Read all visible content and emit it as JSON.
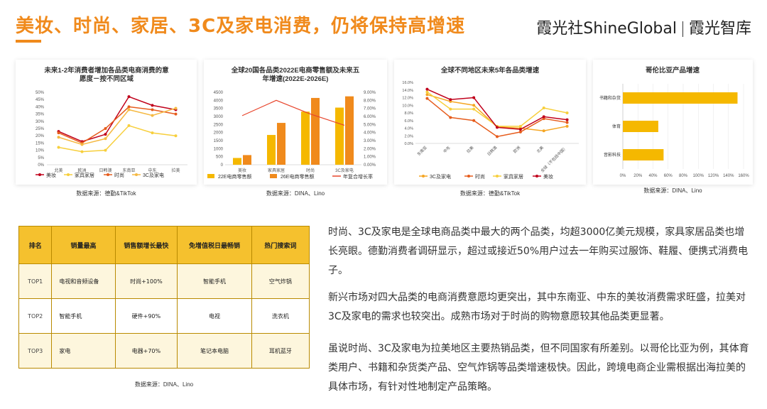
{
  "header": {
    "title": "美妆、时尚、家居、3C及家电消费，仍将保持高增速",
    "logo_left": "霞光社ShineGlobal",
    "logo_right": "霞光智库"
  },
  "chart_data": [
    {
      "type": "line",
      "title": "未来1-2年消费者增加各品类电商消费的意愿度－按不同区域",
      "categories": [
        "北美",
        "欧洲",
        "日韩澳",
        "东南亚",
        "中东",
        "拉美"
      ],
      "ylim": [
        0,
        50
      ],
      "yticks": [
        "0%",
        "5%",
        "10%",
        "15%",
        "20%",
        "25%",
        "30%",
        "35%",
        "40%",
        "45%",
        "50%"
      ],
      "series": [
        {
          "name": "美妆",
          "color": "#c0001b",
          "values": [
            23,
            16,
            21,
            47,
            41,
            38
          ]
        },
        {
          "name": "家具家居",
          "color": "#f7cf3c",
          "values": [
            12,
            9,
            10,
            27,
            22,
            20
          ]
        },
        {
          "name": "时尚",
          "color": "#e65c1c",
          "values": [
            22,
            15,
            25,
            40,
            38,
            35
          ]
        },
        {
          "name": "3C及家电",
          "color": "#f5b942",
          "values": [
            19,
            14,
            18,
            38,
            34,
            39
          ]
        }
      ],
      "source": "数据来源：德勤&TikTok"
    },
    {
      "type": "bar",
      "title": "全球20国各品类2022E电商零售额及未来五年增速(2022E-2026E)",
      "categories": [
        "美妆",
        "家具家居",
        "时尚",
        "3C及家电"
      ],
      "ylim": [
        0,
        4500
      ],
      "yticks": [
        "0",
        "500",
        "1000",
        "1500",
        "2000",
        "2500",
        "3000",
        "3500",
        "4000",
        "4500"
      ],
      "y2lim": [
        0,
        9
      ],
      "y2ticks": [
        "0.00%",
        "1.00%",
        "2.00%",
        "3.00%",
        "4.00%",
        "5.00%",
        "6.00%",
        "7.00%",
        "8.00%",
        "9.00%"
      ],
      "series": [
        {
          "name": "22E电商零售额",
          "color": "#f5b800",
          "values": [
            420,
            1850,
            3300,
            3550
          ]
        },
        {
          "name": "26E电商零售额",
          "color": "#f08a1c",
          "values": [
            600,
            2600,
            4150,
            4250
          ]
        },
        {
          "name": "年复合增长率",
          "color": "#e8452c",
          "values": [
            6.1,
            8.0,
            6.3,
            4.9
          ]
        }
      ],
      "source": "数据来源：DINA、Lino"
    },
    {
      "type": "line",
      "title": "全球不同地区未来5年各品类增速",
      "categories": [
        "东南亚",
        "中东",
        "拉美",
        "日韩澳",
        "欧洲",
        "北美",
        "全球（不包括中国）"
      ],
      "ylim": [
        0,
        16
      ],
      "yticks": [
        "0.0%",
        "2.0%",
        "4.0%",
        "6.0%",
        "8.0%",
        "10.0%",
        "12.0%",
        "14.0%",
        "16.0%"
      ],
      "series": [
        {
          "name": "3C及家电",
          "color": "#f5a623",
          "values": [
            12.8,
            11.0,
            10.0,
            4.3,
            4.0,
            3.3,
            4.5
          ]
        },
        {
          "name": "时尚",
          "color": "#e65c1c",
          "values": [
            11.8,
            6.8,
            6.0,
            1.8,
            3.0,
            6.5,
            5.5
          ]
        },
        {
          "name": "家具家居",
          "color": "#f7cf3c",
          "values": [
            13.5,
            9.0,
            9.0,
            4.5,
            4.5,
            9.3,
            8.0
          ]
        },
        {
          "name": "美妆",
          "color": "#c0001b",
          "values": [
            14.2,
            11.5,
            12.0,
            4.2,
            3.7,
            7.0,
            6.2
          ]
        }
      ],
      "source": "数据来源：德勤&TikTok"
    },
    {
      "type": "bar",
      "orientation": "horizontal",
      "title": "哥伦比亚产品增速",
      "categories": [
        "书籍和杂货",
        "体育",
        "音影科技"
      ],
      "xlim": [
        0,
        160
      ],
      "xticks": [
        "0%",
        "20%",
        "40%",
        "60%",
        "80%",
        "100%",
        "120%",
        "140%",
        "160%"
      ],
      "values": [
        152,
        47,
        54
      ],
      "color": "#f5b800",
      "source": "数据来源：DINA、Lino"
    }
  ],
  "table": {
    "headers": [
      "排名",
      "销量最高",
      "销售额增长最快",
      "免增值税日最畅销",
      "热门搜索词"
    ],
    "rows": [
      [
        "TOP1",
        "电视和音频设备",
        "时尚+100%",
        "智能手机",
        "空气炸锅"
      ],
      [
        "TOP2",
        "智能手机",
        "硬件+90%",
        "电视",
        "洗衣机"
      ],
      [
        "TOP3",
        "家电",
        "电器+70%",
        "笔记本电脑",
        "耳机蓝牙"
      ]
    ],
    "source": "数据来源：DINA、Lino"
  },
  "paragraphs": [
    "时尚、3C及家电是全球电商品类中最大的两个品类，均超3000亿美元规模，家具家居品类也增长亮眼。德勤消费者调研显示，超过或接近50%用户过去一年购买过服饰、鞋履、便携式消费电子。",
    "新兴市场对四大品类的电商消费意愿均更突出，其中东南亚、中东的美妆消费需求旺盛，拉美对3C及家电的需求也较突出。成熟市场对于时尚的购物意愿较其他品类更显著。",
    "虽说时尚、3C及家电为拉美地区主要热销品类，但不同国家有所差别。以哥伦比亚为例，其体育类用户、书籍和杂货类产品、空气炸锅等品类增速极快。因此，跨境电商企业需根据出海拉美的具体市场，有针对性地制定产品策略。"
  ]
}
